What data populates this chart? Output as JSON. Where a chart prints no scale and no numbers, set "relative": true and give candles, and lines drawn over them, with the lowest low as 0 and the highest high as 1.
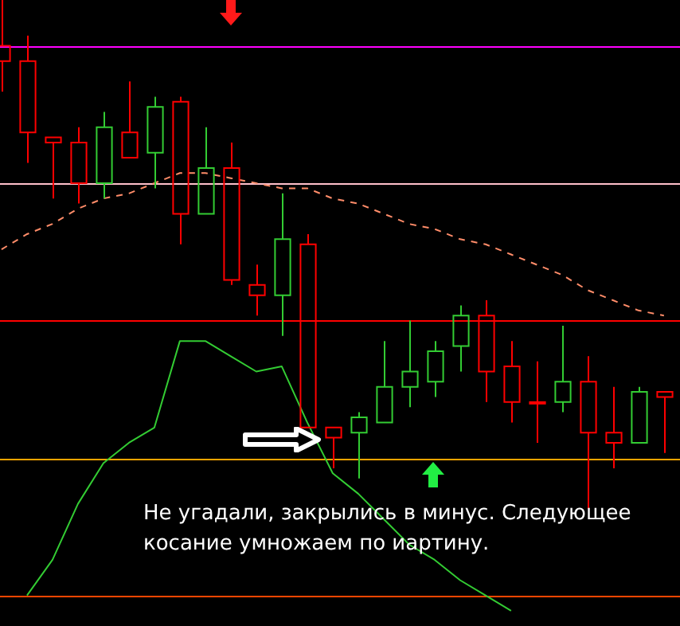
{
  "chart_data": {
    "type": "candlestick",
    "relative": true,
    "tick_labels": false,
    "grid": false,
    "legend": false,
    "categories": [
      null,
      null,
      null,
      null,
      null,
      null,
      null,
      null,
      null,
      null,
      null,
      null,
      null,
      null,
      null,
      null,
      null,
      null,
      null,
      null,
      null,
      null,
      null,
      null,
      null,
      null,
      null
    ],
    "ohlc": [
      [
        0.91,
        1,
        0.82,
        0.88
      ],
      [
        0.88,
        0.93,
        0.68,
        0.74
      ],
      [
        0.73,
        0.73,
        0.61,
        0.72
      ],
      [
        0.72,
        0.75,
        0.6,
        0.64
      ],
      [
        0.64,
        0.78,
        0.61,
        0.75
      ],
      [
        0.74,
        0.84,
        0.69,
        0.69
      ],
      [
        0.7,
        0.81,
        0.63,
        0.79
      ],
      [
        0.8,
        0.81,
        0.52,
        0.58
      ],
      [
        0.58,
        0.75,
        0.58,
        0.67
      ],
      [
        0.67,
        0.72,
        0.44,
        0.45
      ],
      [
        0.44,
        0.48,
        0.38,
        0.42
      ],
      [
        0.42,
        0.62,
        0.34,
        0.53
      ],
      [
        0.52,
        0.54,
        0.16,
        0.16
      ],
      [
        0.16,
        0.16,
        0.08,
        0.14
      ],
      [
        0.15,
        0.19,
        0.06,
        0.18
      ],
      [
        0.17,
        0.33,
        0.17,
        0.24
      ],
      [
        0.24,
        0.37,
        0.2,
        0.27
      ],
      [
        0.25,
        0.33,
        0.22,
        0.31
      ],
      [
        0.32,
        0.4,
        0.27,
        0.38
      ],
      [
        0.38,
        0.41,
        0.21,
        0.27
      ],
      [
        0.28,
        0.33,
        0.17,
        0.21
      ],
      [
        0.21,
        0.29,
        0.13,
        0.21
      ],
      [
        0.21,
        0.36,
        0.19,
        0.25
      ],
      [
        0.25,
        0.3,
        0,
        0.15
      ],
      [
        0.15,
        0.24,
        0.08,
        0.13
      ],
      [
        0.13,
        0.24,
        0.13,
        0.23
      ],
      [
        0.23,
        0.23,
        0.11,
        0.22
      ]
    ],
    "colors": [
      "#ff0000",
      "#ff0000",
      "#ff0000",
      "#ff0000",
      "#33cc33",
      "#ff0000",
      "#33cc33",
      "#ff0000",
      "#33cc33",
      "#ff0000",
      "#ff0000",
      "#33cc33",
      "#ff0000",
      "#ff0000",
      "#33cc33",
      "#33cc33",
      "#33cc33",
      "#33cc33",
      "#33cc33",
      "#ff0000",
      "#ff0000",
      "#ff0000",
      "#33cc33",
      "#ff0000",
      "#ff0000",
      "#33cc33",
      "#ff0000"
    ],
    "series": [
      {
        "type": "line",
        "color": "#ff8c69",
        "line_style": "dashed",
        "values": [
          0.51,
          0.54,
          0.56,
          0.59,
          0.61,
          0.62,
          0.64,
          0.66,
          0.66,
          0.65,
          0.64,
          0.63,
          0.63,
          0.61,
          0.6,
          0.58,
          0.56,
          0.55,
          0.53,
          0.52,
          0.5,
          0.48,
          0.46,
          0.43,
          0.41,
          0.39,
          0.38
        ]
      },
      {
        "type": "line",
        "color": "#33cc33",
        "line_style": "solid",
        "values": [
          null,
          -0.17,
          -0.1,
          0.01,
          0.09,
          0.13,
          0.16,
          0.33,
          0.33,
          0.3,
          0.27,
          0.28,
          0.17,
          0.07,
          0.03,
          -0.02,
          -0.07,
          -0.1,
          -0.14,
          -0.17,
          -0.2,
          null,
          null,
          null,
          null,
          null,
          null
        ]
      }
    ],
    "ref_lines": [
      {
        "axis": "y",
        "value": 0.91,
        "color": "#ff00ff"
      },
      {
        "axis": "y",
        "value": 0.64,
        "color": "#ffc0cb"
      },
      {
        "axis": "y",
        "value": 0.37,
        "color": "#ff0000"
      },
      {
        "axis": "y",
        "value": 0.1,
        "color": "#ffa500"
      },
      {
        "axis": "y",
        "value": -0.17,
        "color": "#ff4500"
      }
    ],
    "annotations": [
      "Не угадали, закрылись в минус. Следующее косание умножаем по иартину."
    ]
  }
}
